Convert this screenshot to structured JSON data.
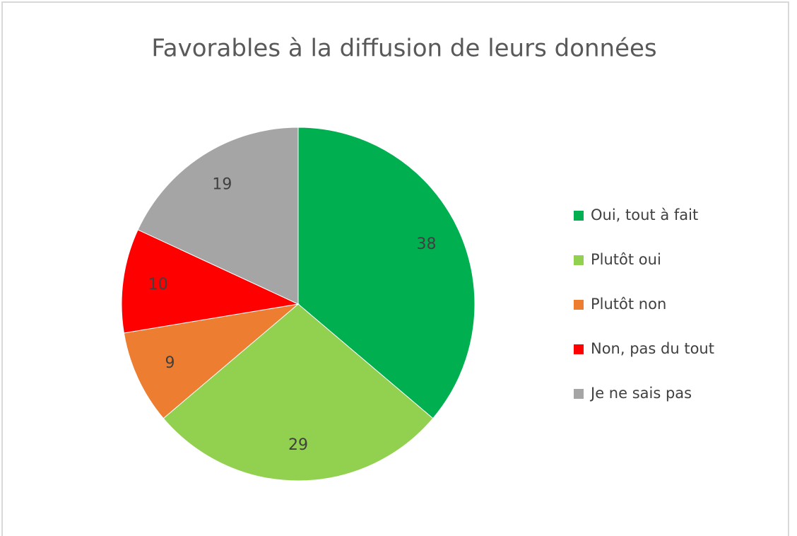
{
  "chart_data": {
    "type": "pie",
    "title": "Favorables à la diffusion de leurs données",
    "categories": [
      "Oui, tout à fait",
      "Plutôt oui",
      "Plutôt non",
      "Non, pas du tout",
      "Je ne sais pas"
    ],
    "values": [
      38,
      29,
      9,
      10,
      19
    ],
    "colors": [
      "#00b050",
      "#92d050",
      "#ed7d31",
      "#ff0000",
      "#a5a5a5"
    ],
    "legend": "right"
  }
}
